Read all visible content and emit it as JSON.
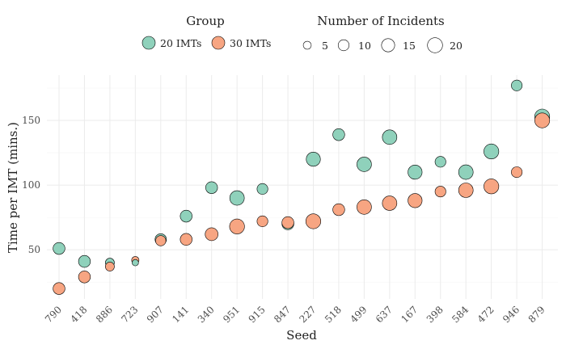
{
  "chart_data": {
    "type": "scatter",
    "xlabel": "Seed",
    "ylabel": "Time per IMT (mins.)",
    "categories": [
      "790",
      "418",
      "886",
      "723",
      "907",
      "141",
      "340",
      "951",
      "915",
      "847",
      "227",
      "518",
      "499",
      "637",
      "167",
      "398",
      "584",
      "472",
      "946",
      "879"
    ],
    "yticks": [
      50,
      100,
      150
    ],
    "ylim": [
      12,
      185
    ],
    "grid": true,
    "legend_position": "top",
    "color_legend": {
      "title": "Group",
      "entries": [
        {
          "label": "20 IMTs",
          "color": "#8fd1bb"
        },
        {
          "label": "30 IMTs",
          "color": "#f7a582"
        }
      ]
    },
    "size_legend": {
      "title": "Number of Incidents",
      "values": [
        5,
        10,
        15,
        20
      ]
    },
    "series": [
      {
        "name": "20 IMTs",
        "color": "#8fd1bb",
        "y": [
          51,
          41,
          40,
          40,
          58,
          76,
          98,
          90,
          97,
          70,
          120,
          139,
          116,
          137,
          110,
          118,
          110,
          126,
          177,
          153
        ],
        "incidents": [
          10,
          10,
          5,
          2,
          9,
          10,
          10,
          16,
          8,
          10,
          15,
          10,
          16,
          16,
          15,
          8,
          16,
          17,
          8,
          17
        ]
      },
      {
        "name": "30 IMTs",
        "color": "#f7a582",
        "y": [
          20,
          29,
          37,
          42,
          57,
          58,
          62,
          68,
          72,
          71,
          72,
          81,
          83,
          86,
          88,
          95,
          96,
          99,
          110,
          150
        ],
        "incidents": [
          10,
          10,
          5,
          3,
          7,
          10,
          12,
          17,
          8,
          10,
          17,
          10,
          16,
          16,
          15,
          8,
          16,
          17,
          8,
          17
        ]
      }
    ]
  }
}
